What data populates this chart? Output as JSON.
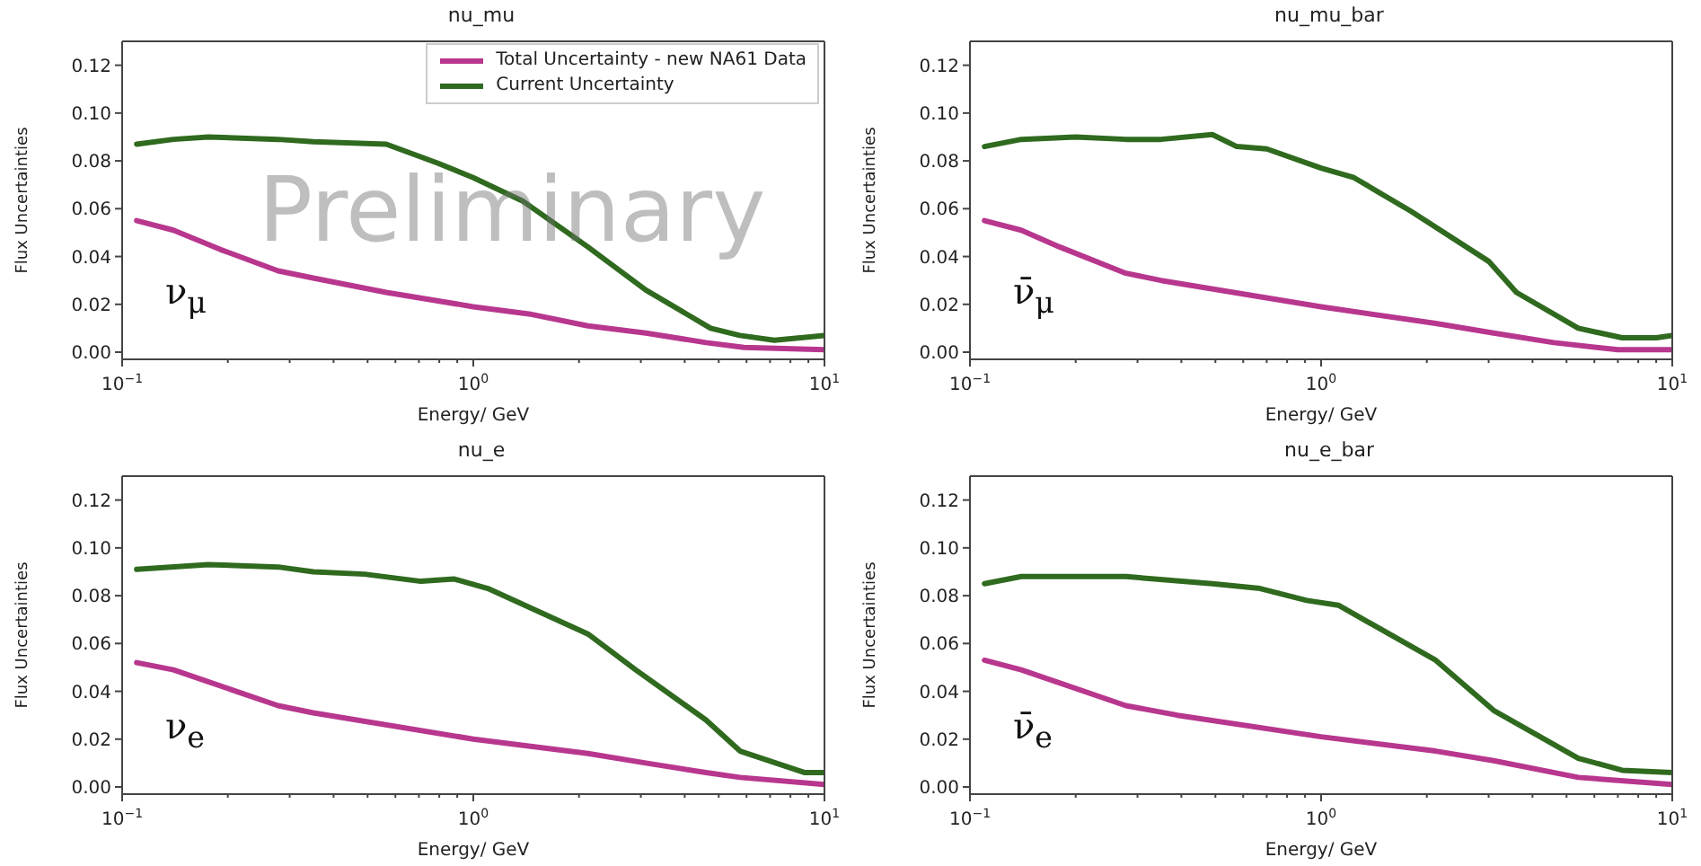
{
  "chart_data": [
    {
      "type": "line",
      "title": "nu_mu",
      "xlabel": "Energy/ GeV",
      "ylabel": "Flux Uncertainties",
      "log": "x",
      "legend": "top right",
      "xlim": [
        0.1,
        10
      ],
      "ylim": [
        -0.003,
        0.13
      ],
      "xticks": [
        {
          "value": 0.1,
          "label": "10$^{−1}$"
        },
        {
          "value": 0.2,
          "label": null
        },
        {
          "value": 0.3,
          "label": null
        },
        {
          "value": 0.4,
          "label": null
        },
        {
          "value": 0.5,
          "label": null
        },
        {
          "value": 0.6,
          "label": null
        },
        {
          "value": 0.7,
          "label": null
        },
        {
          "value": 0.8,
          "label": null
        },
        {
          "value": 0.9,
          "label": null
        },
        {
          "value": 1,
          "label": "10$^{0}$"
        },
        {
          "value": 2,
          "label": null
        },
        {
          "value": 3,
          "label": null
        },
        {
          "value": 4,
          "label": null
        },
        {
          "value": 5,
          "label": null
        },
        {
          "value": 6,
          "label": null
        },
        {
          "value": 7,
          "label": null
        },
        {
          "value": 8,
          "label": null
        },
        {
          "value": 9,
          "label": null
        },
        {
          "value": 10,
          "label": "10$^{1}$"
        }
      ],
      "yticks": [
        {
          "value": 0,
          "label": "0.00"
        },
        {
          "value": 0.02,
          "label": "0.02"
        },
        {
          "value": 0.04,
          "label": "0.04"
        },
        {
          "value": 0.06,
          "label": "0.06"
        },
        {
          "value": 0.08,
          "label": "0.08"
        },
        {
          "value": 0.1,
          "label": "0.10"
        },
        {
          "value": 0.12,
          "label": "0.12"
        }
      ],
      "annotations": [
        "ν$_{μ}$",
        "Preliminary"
      ],
      "series": [
        {
          "name": "Total Uncertainty - new NA61 Data",
          "color": "#b8378e",
          "x": [
            0.11,
            0.14,
            0.19,
            0.278,
            0.35,
            0.565,
            1.0,
            1.44,
            2.12,
            3.1,
            4.6,
            5.9,
            10
          ],
          "values": [
            0.055,
            0.051,
            0.043,
            0.034,
            0.031,
            0.025,
            0.019,
            0.016,
            0.011,
            0.008,
            0.004,
            0.002,
            0.001
          ]
        },
        {
          "name": "Current Uncertainty",
          "color": "#2f6a1f",
          "x": [
            0.11,
            0.14,
            0.176,
            0.278,
            0.35,
            0.565,
            0.794,
            1.0,
            1.39,
            2.12,
            3.1,
            4.74,
            5.74,
            7.2,
            10
          ],
          "values": [
            0.087,
            0.089,
            0.09,
            0.089,
            0.088,
            0.087,
            0.079,
            0.073,
            0.063,
            0.044,
            0.026,
            0.01,
            0.007,
            0.005,
            0.007
          ]
        }
      ]
    },
    {
      "type": "line",
      "title": "nu_mu_bar",
      "xlabel": "Energy/ GeV",
      "ylabel": "Flux Uncertainties",
      "log": "x",
      "xlim": [
        0.1,
        10
      ],
      "ylim": [
        -0.003,
        0.13
      ],
      "xticks": [
        {
          "value": 0.1,
          "label": "10$^{−1}$"
        },
        {
          "value": 0.2,
          "label": null
        },
        {
          "value": 0.3,
          "label": null
        },
        {
          "value": 0.4,
          "label": null
        },
        {
          "value": 0.5,
          "label": null
        },
        {
          "value": 0.6,
          "label": null
        },
        {
          "value": 0.7,
          "label": null
        },
        {
          "value": 0.8,
          "label": null
        },
        {
          "value": 0.9,
          "label": null
        },
        {
          "value": 1,
          "label": "10$^{0}$"
        },
        {
          "value": 2,
          "label": null
        },
        {
          "value": 3,
          "label": null
        },
        {
          "value": 4,
          "label": null
        },
        {
          "value": 5,
          "label": null
        },
        {
          "value": 6,
          "label": null
        },
        {
          "value": 7,
          "label": null
        },
        {
          "value": 8,
          "label": null
        },
        {
          "value": 9,
          "label": null
        },
        {
          "value": 10,
          "label": "10$^{1}$"
        }
      ],
      "yticks": [
        {
          "value": 0,
          "label": "0.00"
        },
        {
          "value": 0.02,
          "label": "0.02"
        },
        {
          "value": 0.04,
          "label": "0.04"
        },
        {
          "value": 0.06,
          "label": "0.06"
        },
        {
          "value": 0.08,
          "label": "0.08"
        },
        {
          "value": 0.1,
          "label": "0.10"
        },
        {
          "value": 0.12,
          "label": "0.12"
        }
      ],
      "annotations": [
        "ν̄$_{μ}$"
      ],
      "series": [
        {
          "color": "#b8378e",
          "x": [
            0.11,
            0.14,
            0.18,
            0.278,
            0.35,
            1.0,
            2.12,
            3.1,
            4.6,
            7.0,
            10
          ],
          "values": [
            0.055,
            0.051,
            0.044,
            0.033,
            0.03,
            0.019,
            0.012,
            0.008,
            0.004,
            0.001,
            0.001
          ]
        },
        {
          "color": "#2f6a1f",
          "x": [
            0.11,
            0.14,
            0.2,
            0.278,
            0.35,
            0.49,
            0.575,
            0.7,
            1.0,
            1.24,
            1.8,
            3.0,
            3.6,
            5.4,
            7.2,
            9.0,
            10
          ],
          "values": [
            0.086,
            0.089,
            0.09,
            0.089,
            0.089,
            0.091,
            0.086,
            0.085,
            0.077,
            0.073,
            0.059,
            0.038,
            0.025,
            0.01,
            0.006,
            0.006,
            0.007
          ]
        }
      ]
    },
    {
      "type": "line",
      "title": "nu_e",
      "xlabel": "Energy/ GeV",
      "ylabel": "Flux Uncertainties",
      "log": "x",
      "xlim": [
        0.1,
        10
      ],
      "ylim": [
        -0.003,
        0.13
      ],
      "xticks": [
        {
          "value": 0.1,
          "label": "10$^{−1}$"
        },
        {
          "value": 0.2,
          "label": null
        },
        {
          "value": 0.3,
          "label": null
        },
        {
          "value": 0.4,
          "label": null
        },
        {
          "value": 0.5,
          "label": null
        },
        {
          "value": 0.6,
          "label": null
        },
        {
          "value": 0.7,
          "label": null
        },
        {
          "value": 0.8,
          "label": null
        },
        {
          "value": 0.9,
          "label": null
        },
        {
          "value": 1,
          "label": "10$^{0}$"
        },
        {
          "value": 2,
          "label": null
        },
        {
          "value": 3,
          "label": null
        },
        {
          "value": 4,
          "label": null
        },
        {
          "value": 5,
          "label": null
        },
        {
          "value": 6,
          "label": null
        },
        {
          "value": 7,
          "label": null
        },
        {
          "value": 8,
          "label": null
        },
        {
          "value": 9,
          "label": null
        },
        {
          "value": 10,
          "label": "10$^{1}$"
        }
      ],
      "yticks": [
        {
          "value": 0,
          "label": "0.00"
        },
        {
          "value": 0.02,
          "label": "0.02"
        },
        {
          "value": 0.04,
          "label": "0.04"
        },
        {
          "value": 0.06,
          "label": "0.06"
        },
        {
          "value": 0.08,
          "label": "0.08"
        },
        {
          "value": 0.1,
          "label": "0.10"
        },
        {
          "value": 0.12,
          "label": "0.12"
        }
      ],
      "annotations": [
        "ν$_{e}$"
      ],
      "series": [
        {
          "color": "#b8378e",
          "x": [
            0.11,
            0.14,
            0.278,
            0.35,
            1.0,
            2.12,
            3.1,
            4.6,
            5.75,
            10
          ],
          "values": [
            0.052,
            0.049,
            0.034,
            0.031,
            0.02,
            0.014,
            0.01,
            0.006,
            0.004,
            0.001
          ]
        },
        {
          "color": "#2f6a1f",
          "x": [
            0.11,
            0.176,
            0.278,
            0.35,
            0.49,
            0.71,
            0.88,
            1.1,
            2.12,
            2.9,
            4.6,
            5.75,
            8.8,
            10
          ],
          "values": [
            0.091,
            0.093,
            0.092,
            0.09,
            0.089,
            0.086,
            0.087,
            0.083,
            0.064,
            0.049,
            0.028,
            0.015,
            0.006,
            0.006
          ]
        }
      ]
    },
    {
      "type": "line",
      "title": "nu_e_bar",
      "xlabel": "Energy/ GeV",
      "ylabel": "Flux Uncertainties",
      "log": "x",
      "xlim": [
        0.1,
        10
      ],
      "ylim": [
        -0.003,
        0.13
      ],
      "xticks": [
        {
          "value": 0.1,
          "label": "10$^{−1}$"
        },
        {
          "value": 0.2,
          "label": null
        },
        {
          "value": 0.3,
          "label": null
        },
        {
          "value": 0.4,
          "label": null
        },
        {
          "value": 0.5,
          "label": null
        },
        {
          "value": 0.6,
          "label": null
        },
        {
          "value": 0.7,
          "label": null
        },
        {
          "value": 0.8,
          "label": null
        },
        {
          "value": 0.9,
          "label": null
        },
        {
          "value": 1,
          "label": "10$^{0}$"
        },
        {
          "value": 2,
          "label": null
        },
        {
          "value": 3,
          "label": null
        },
        {
          "value": 4,
          "label": null
        },
        {
          "value": 5,
          "label": null
        },
        {
          "value": 6,
          "label": null
        },
        {
          "value": 7,
          "label": null
        },
        {
          "value": 8,
          "label": null
        },
        {
          "value": 9,
          "label": null
        },
        {
          "value": 10,
          "label": "10$^{1}$"
        }
      ],
      "yticks": [
        {
          "value": 0,
          "label": "0.00"
        },
        {
          "value": 0.02,
          "label": "0.02"
        },
        {
          "value": 0.04,
          "label": "0.04"
        },
        {
          "value": 0.06,
          "label": "0.06"
        },
        {
          "value": 0.08,
          "label": "0.08"
        },
        {
          "value": 0.1,
          "label": "0.10"
        },
        {
          "value": 0.12,
          "label": "0.12"
        }
      ],
      "annotations": [
        "ν̄$_{e}$"
      ],
      "series": [
        {
          "color": "#b8378e",
          "x": [
            0.11,
            0.14,
            0.278,
            0.39,
            1.0,
            2.12,
            3.1,
            5.4,
            10
          ],
          "values": [
            0.053,
            0.049,
            0.034,
            0.03,
            0.021,
            0.015,
            0.011,
            0.004,
            0.001
          ]
        },
        {
          "color": "#2f6a1f",
          "x": [
            0.11,
            0.14,
            0.278,
            0.49,
            0.67,
            0.91,
            1.12,
            2.12,
            3.1,
            5.4,
            7.2,
            10
          ],
          "values": [
            0.085,
            0.088,
            0.088,
            0.085,
            0.083,
            0.078,
            0.076,
            0.053,
            0.032,
            0.012,
            0.007,
            0.006
          ]
        }
      ]
    }
  ]
}
